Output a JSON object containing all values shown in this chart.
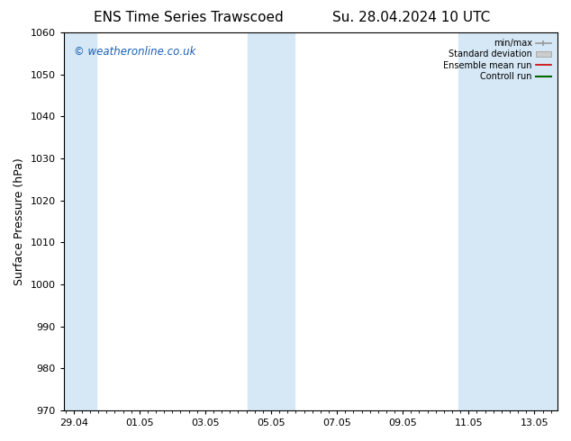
{
  "title_left": "ENS Time Series Trawscoed",
  "title_right": "Su. 28.04.2024 10 UTC",
  "ylabel": "Surface Pressure (hPa)",
  "ylim": [
    970,
    1060
  ],
  "yticks": [
    970,
    980,
    990,
    1000,
    1010,
    1020,
    1030,
    1040,
    1050,
    1060
  ],
  "xtick_labels": [
    "29.04",
    "01.05",
    "03.05",
    "05.05",
    "07.05",
    "09.05",
    "11.05",
    "13.05"
  ],
  "xtick_positions": [
    0,
    2,
    4,
    6,
    8,
    10,
    12,
    14
  ],
  "xlim": [
    -0.3,
    14.7
  ],
  "shaded_bands": [
    {
      "x_start": -0.3,
      "x_end": 0.7,
      "color": "#d6e8f5"
    },
    {
      "x_start": 5.7,
      "x_end": 6.7,
      "color": "#d6e8f5"
    },
    {
      "x_start": 5.3,
      "x_end": 6.3,
      "color": "#d6e8f5"
    },
    {
      "x_start": 11.7,
      "x_end": 12.3,
      "color": "#d6e8f5"
    },
    {
      "x_start": 12.3,
      "x_end": 14.7,
      "color": "#d6e8f5"
    }
  ],
  "legend_labels": [
    "min/max",
    "Standard deviation",
    "Ensemble mean run",
    "Controll run"
  ],
  "watermark": "© weatheronline.co.uk",
  "watermark_color": "#1a5eb5",
  "bg_color": "#ffffff",
  "plot_bg_color": "#ffffff",
  "spine_color": "#000000",
  "tick_label_color": "#000000",
  "title_color": "#000000",
  "title_fontsize": 11,
  "ylabel_fontsize": 9,
  "tick_fontsize": 8
}
